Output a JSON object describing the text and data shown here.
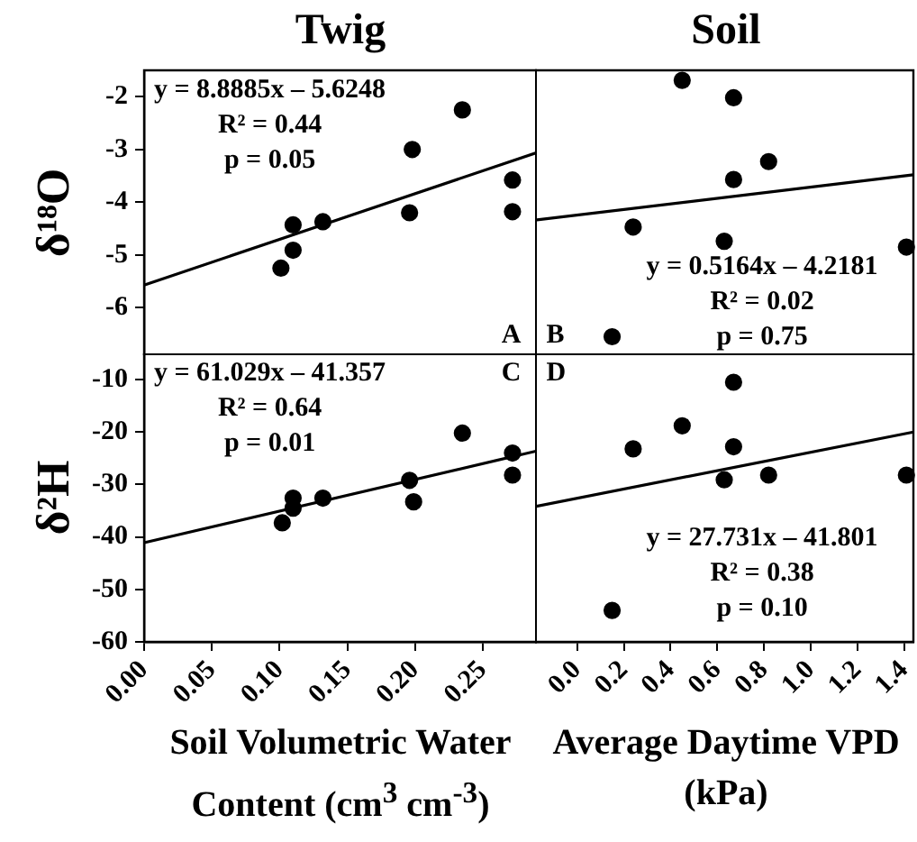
{
  "chart_data": [
    {
      "type": "scatter",
      "title": "Twig",
      "ylabel": "δ¹⁸O",
      "marker": "circle",
      "grid": false,
      "tick_labels": "y",
      "xlim": [
        0,
        0.29
      ],
      "ylim": [
        -6.9,
        -1.5
      ],
      "yticks": [
        -6,
        -5,
        -4,
        -3,
        -2
      ],
      "series": [
        {
          "type": "scatter",
          "color": "#000000",
          "x": [
            0.101,
            0.11,
            0.11,
            0.132,
            0.196,
            0.198,
            0.235,
            0.272,
            0.272
          ],
          "values": [
            -5.25,
            -4.43,
            -4.91,
            -4.37,
            -4.2,
            -3.0,
            -2.25,
            -3.58,
            -4.18
          ]
        },
        {
          "type": "line",
          "color": "#000000",
          "marker": "none",
          "x": [
            0,
            0.29
          ],
          "values": [
            -5.57,
            -3.06
          ]
        }
      ],
      "annotations": [
        "y = 8.8885x – 5.6248",
        "R² = 0.44",
        "p = 0.05",
        "A"
      ]
    },
    {
      "type": "scatter",
      "title": "Soil",
      "marker": "circle",
      "grid": false,
      "tick_labels": false,
      "xlim": [
        -0.18,
        1.44
      ],
      "ylim": [
        -6.9,
        -1.5
      ],
      "series": [
        {
          "type": "scatter",
          "color": "#000000",
          "x": [
            0.45,
            0.67,
            0.82,
            0.67,
            0.24,
            0.63,
            0.15,
            1.41
          ],
          "values": [
            -1.69,
            -2.02,
            -3.23,
            -3.57,
            -4.47,
            -4.74,
            -6.55,
            -4.85
          ]
        },
        {
          "type": "line",
          "color": "#000000",
          "marker": "none",
          "x": [
            -0.18,
            1.44
          ],
          "values": [
            -4.34,
            -3.48
          ]
        }
      ],
      "annotations": [
        "y = 0.5164x – 4.2181",
        "R² = 0.02",
        "p = 0.75",
        "B"
      ]
    },
    {
      "type": "scatter",
      "ylabel": "δ²H",
      "xlabel": "Soil Volumetric Water Content (cm$^{3}$ cm$^{-3}$)",
      "marker": "circle",
      "grid": false,
      "xlim": [
        0,
        0.29
      ],
      "ylim": [
        -60,
        -5
      ],
      "xticks": [
        {
          "value": 0,
          "label": "0.00"
        },
        {
          "value": 0.05,
          "label": "0.05"
        },
        {
          "value": 0.1,
          "label": "0.10"
        },
        {
          "value": 0.15,
          "label": "0.15"
        },
        {
          "value": 0.2,
          "label": "0.20"
        },
        {
          "value": 0.25,
          "label": "0.25"
        }
      ],
      "yticks": [
        -60,
        -50,
        -40,
        -30,
        -20,
        -10
      ],
      "series": [
        {
          "type": "scatter",
          "color": "#000000",
          "x": [
            0.102,
            0.11,
            0.11,
            0.132,
            0.196,
            0.199,
            0.235,
            0.272,
            0.272
          ],
          "values": [
            -37.3,
            -32.6,
            -34.5,
            -32.6,
            -29.2,
            -33.3,
            -20.2,
            -24.0,
            -28.2
          ]
        },
        {
          "type": "line",
          "color": "#000000",
          "marker": "none",
          "x": [
            0,
            0.29
          ],
          "values": [
            -41.1,
            -23.6
          ]
        }
      ],
      "annotations": [
        "y = 61.029x – 41.357",
        "R² = 0.64",
        "p = 0.01",
        "C"
      ]
    },
    {
      "type": "scatter",
      "xlabel": "Average Daytime VPD (kPa)",
      "marker": "circle",
      "grid": false,
      "tick_labels": "x",
      "xlim": [
        -0.18,
        1.44
      ],
      "ylim": [
        -60,
        -5
      ],
      "xticks": [
        {
          "value": 0,
          "label": "0.0"
        },
        0.2,
        0.4,
        0.6,
        0.8,
        {
          "value": 1,
          "label": "1.0"
        },
        1.2,
        1.4
      ],
      "series": [
        {
          "type": "scatter",
          "color": "#000000",
          "x": [
            0.45,
            0.24,
            0.67,
            0.63,
            0.82,
            0.15,
            1.41,
            0.67
          ],
          "values": [
            -18.8,
            -23.2,
            -22.8,
            -29.1,
            -28.2,
            -54.0,
            -28.2,
            -10.5
          ]
        },
        {
          "type": "line",
          "color": "#000000",
          "marker": "none",
          "x": [
            -0.18,
            1.44
          ],
          "values": [
            -34.2,
            -20.0
          ]
        }
      ],
      "annotations": [
        "y = 27.731x – 41.801",
        "R² = 0.38",
        "p = 0.10",
        "D"
      ]
    }
  ]
}
